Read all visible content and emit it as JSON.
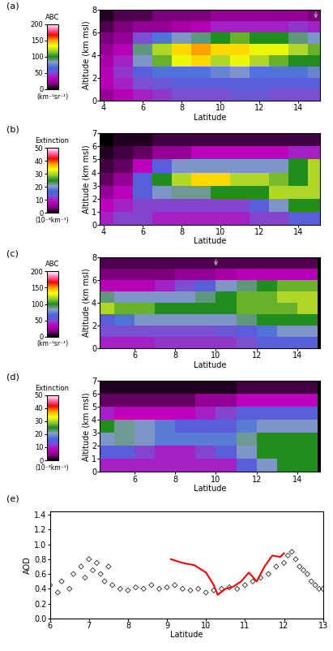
{
  "chart_data": [
    {
      "type": "heatmap",
      "panel_label": "(a)",
      "xlabel": "Latitude",
      "ylabel": "Altitude (km msl)",
      "xlim": [
        3.8,
        15.1
      ],
      "xticks": [
        4,
        6,
        8,
        10,
        12,
        14
      ],
      "ylim": [
        0,
        8
      ],
      "yticks": [
        0,
        2,
        4,
        6,
        8
      ],
      "arrow_x": 14.9,
      "colorbar": {
        "label": "ABC",
        "units": "(km⁻¹sr⁻¹)",
        "range": [
          0,
          200
        ],
        "ticks": [
          0,
          50,
          100,
          150,
          200
        ]
      },
      "x": [
        4,
        5,
        6,
        7,
        8,
        9,
        10,
        11,
        12,
        13,
        14,
        15
      ],
      "y": [
        0.5,
        1.5,
        2.5,
        3.5,
        4.5,
        5.5,
        6.5,
        7.5
      ],
      "cells": [
        [
          20,
          30,
          40,
          45,
          50,
          50,
          50,
          55,
          55,
          50,
          50,
          50
        ],
        [
          30,
          40,
          50,
          55,
          60,
          60,
          60,
          60,
          60,
          60,
          60,
          60
        ],
        [
          30,
          45,
          60,
          70,
          70,
          70,
          75,
          80,
          70,
          70,
          70,
          75
        ],
        [
          25,
          40,
          80,
          110,
          130,
          140,
          120,
          130,
          120,
          110,
          100,
          100
        ],
        [
          20,
          30,
          90,
          120,
          140,
          150,
          140,
          140,
          130,
          130,
          120,
          110
        ],
        [
          15,
          20,
          50,
          70,
          80,
          90,
          100,
          110,
          100,
          100,
          90,
          80
        ],
        [
          10,
          15,
          20,
          20,
          25,
          30,
          40,
          40,
          40,
          40,
          45,
          40
        ],
        [
          5,
          10,
          10,
          15,
          15,
          15,
          20,
          20,
          20,
          20,
          20,
          15
        ]
      ]
    },
    {
      "type": "heatmap",
      "panel_label": "(b)",
      "xlabel": "Latitude",
      "ylabel": "Altitude (km msl)",
      "xlim": [
        3.8,
        15.1
      ],
      "xticks": [
        4,
        6,
        8,
        10,
        12,
        14
      ],
      "ylim": [
        0,
        7
      ],
      "yticks": [
        0,
        1,
        2,
        3,
        4,
        5,
        6,
        7
      ],
      "colorbar": {
        "label": "Extinction",
        "units": "(10⁻³km⁻¹)",
        "range": [
          0,
          50
        ],
        "ticks": [
          0,
          10,
          20,
          30,
          40,
          50
        ]
      },
      "x": [
        4,
        5,
        6,
        7,
        8,
        9,
        10,
        11,
        12,
        13,
        14,
        15
      ],
      "y": [
        0.5,
        1.5,
        2.5,
        3.5,
        4.5,
        5.5,
        6.5
      ],
      "cells": [
        [
          10,
          12,
          12,
          10,
          10,
          10,
          10,
          10,
          12,
          12,
          15,
          15
        ],
        [
          8,
          10,
          12,
          12,
          12,
          12,
          12,
          12,
          15,
          20,
          25,
          25
        ],
        [
          5,
          8,
          15,
          20,
          22,
          22,
          25,
          25,
          25,
          30,
          30,
          30
        ],
        [
          3,
          5,
          15,
          25,
          30,
          35,
          35,
          30,
          30,
          28,
          25,
          30
        ],
        [
          2,
          3,
          8,
          15,
          20,
          20,
          20,
          20,
          20,
          20,
          25,
          30
        ],
        [
          1,
          2,
          3,
          5,
          5,
          8,
          8,
          8,
          8,
          8,
          10,
          10
        ],
        [
          0,
          1,
          1,
          2,
          2,
          2,
          2,
          2,
          2,
          2,
          2,
          2
        ]
      ]
    },
    {
      "type": "heatmap",
      "panel_label": "(c)",
      "xlabel": "Latitude",
      "ylabel": "Altitude (km msl)",
      "xlim": [
        4.3,
        15.1
      ],
      "xticks": [
        6,
        8,
        10,
        12,
        14
      ],
      "ylim": [
        0,
        8
      ],
      "yticks": [
        0,
        2,
        4,
        6,
        8
      ],
      "arrow_x": 10,
      "colorbar": {
        "label": "ABC",
        "units": "(km⁻¹sr⁻¹)",
        "range": [
          0,
          200
        ],
        "ticks": [
          0,
          50,
          100,
          150,
          200
        ]
      },
      "x": [
        4.5,
        5.5,
        6.5,
        7.5,
        8.5,
        9.5,
        10.5,
        11.5,
        12.5,
        13.5,
        14.5
      ],
      "y": [
        0.5,
        1.5,
        2.5,
        3.5,
        4.5,
        5.5,
        6.5,
        7.5
      ],
      "cells": [
        [
          40,
          40,
          40,
          45,
          45,
          45,
          45,
          50,
          60,
          60,
          60
        ],
        [
          50,
          50,
          50,
          50,
          50,
          50,
          55,
          60,
          70,
          80,
          80
        ],
        [
          60,
          70,
          80,
          80,
          80,
          80,
          80,
          90,
          100,
          100,
          100
        ],
        [
          120,
          110,
          110,
          100,
          100,
          100,
          100,
          110,
          110,
          110,
          120
        ],
        [
          90,
          80,
          80,
          80,
          80,
          90,
          100,
          110,
          110,
          120,
          120
        ],
        [
          30,
          30,
          30,
          40,
          50,
          60,
          80,
          90,
          100,
          110,
          110
        ],
        [
          15,
          15,
          15,
          15,
          20,
          20,
          25,
          30,
          30,
          30,
          30
        ],
        [
          10,
          10,
          10,
          10,
          10,
          10,
          10,
          10,
          10,
          10,
          10
        ]
      ]
    },
    {
      "type": "heatmap",
      "panel_label": "(d)",
      "xlabel": "Latitude",
      "ylabel": "Altitude (km msl)",
      "xlim": [
        4.3,
        15.1
      ],
      "xticks": [
        6,
        8,
        10,
        12,
        14
      ],
      "ylim": [
        0,
        7
      ],
      "yticks": [
        0,
        1,
        2,
        3,
        4,
        5,
        6,
        7
      ],
      "colorbar": {
        "label": "Extinction",
        "units": "(10⁻³km⁻¹)",
        "range": [
          0,
          50
        ],
        "ticks": [
          0,
          10,
          20,
          30,
          40,
          50
        ]
      },
      "x": [
        4.5,
        5.5,
        6.5,
        7.5,
        8.5,
        9.5,
        10.5,
        11.5,
        12.5,
        13.5,
        14.5
      ],
      "y": [
        0.5,
        1.5,
        2.5,
        3.5,
        4.5,
        5.5,
        6.5
      ],
      "cells": [
        [
          10,
          10,
          10,
          10,
          10,
          10,
          10,
          15,
          20,
          25,
          25
        ],
        [
          15,
          15,
          12,
          10,
          10,
          12,
          15,
          20,
          25,
          25,
          25
        ],
        [
          20,
          22,
          20,
          18,
          18,
          18,
          18,
          22,
          25,
          25,
          25
        ],
        [
          25,
          22,
          20,
          18,
          15,
          15,
          15,
          18,
          20,
          20,
          20
        ],
        [
          10,
          8,
          8,
          8,
          8,
          10,
          12,
          15,
          15,
          15,
          15
        ],
        [
          3,
          3,
          3,
          3,
          3,
          5,
          5,
          8,
          8,
          8,
          8
        ],
        [
          1,
          1,
          1,
          1,
          1,
          1,
          1,
          2,
          2,
          2,
          2
        ]
      ]
    },
    {
      "type": "scatter",
      "panel_label": "(e)",
      "xlabel": "Latitude",
      "ylabel": "AOD",
      "xlim": [
        6,
        13
      ],
      "xticks": [
        6,
        7,
        8,
        9,
        10,
        11,
        12,
        13
      ],
      "ylim": [
        0,
        1.45
      ],
      "yticks": [
        {
          "value": 0,
          "label": "0.0"
        },
        0.2,
        0.4,
        0.6,
        0.8,
        {
          "value": 1,
          "label": "1.0"
        },
        1.2,
        1.4
      ],
      "series": [
        {
          "type": "scatter",
          "marker": "diamond",
          "color": "#000000",
          "x": [
            6.0,
            6.2,
            6.3,
            6.5,
            6.6,
            6.8,
            6.9,
            7.0,
            7.1,
            7.2,
            7.3,
            7.4,
            7.5,
            7.6,
            7.8,
            8.0,
            8.2,
            8.4,
            8.6,
            8.8,
            9.0,
            9.2,
            9.4,
            9.6,
            9.8,
            10.0,
            10.2,
            10.4,
            10.6,
            10.8,
            11.0,
            11.2,
            11.4,
            11.6,
            11.8,
            12.0,
            12.1,
            12.2,
            12.3,
            12.4,
            12.5,
            12.6,
            12.7,
            12.8,
            12.9,
            13.0
          ],
          "values": [
            0.45,
            0.35,
            0.5,
            0.4,
            0.6,
            0.7,
            0.55,
            0.8,
            0.65,
            0.75,
            0.6,
            0.5,
            0.7,
            0.45,
            0.4,
            0.38,
            0.42,
            0.4,
            0.45,
            0.4,
            0.42,
            0.45,
            0.4,
            0.38,
            0.4,
            0.35,
            0.38,
            0.4,
            0.42,
            0.4,
            0.45,
            0.5,
            0.55,
            0.6,
            0.7,
            0.75,
            0.85,
            0.9,
            0.8,
            0.7,
            0.65,
            0.6,
            0.5,
            0.45,
            0.4,
            0.4
          ]
        },
        {
          "type": "line",
          "line_style": "solid",
          "color": "#ff0000",
          "x": [
            9.1,
            9.4,
            9.7,
            10.0,
            10.2,
            10.3,
            10.5,
            10.7,
            10.9,
            11.1,
            11.3,
            11.5,
            11.7,
            11.9,
            12.0
          ],
          "values": [
            0.8,
            0.75,
            0.72,
            0.62,
            0.45,
            0.32,
            0.4,
            0.43,
            0.5,
            0.62,
            0.5,
            0.7,
            0.85,
            0.83,
            0.88
          ]
        }
      ]
    }
  ]
}
